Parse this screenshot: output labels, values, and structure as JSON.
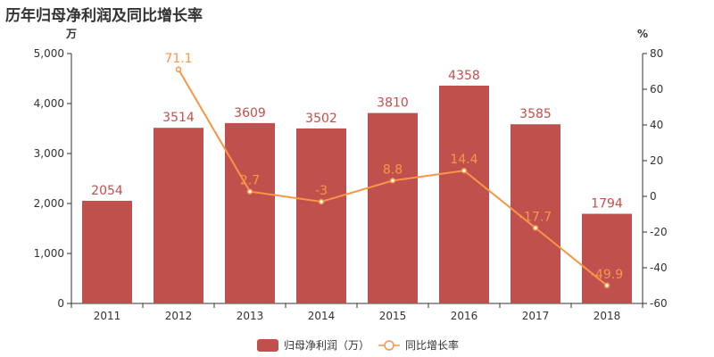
{
  "title": "历年归母净利润及同比增长率",
  "colors": {
    "bar": "#c0504d",
    "line": "#f79646",
    "axis": "#333333"
  },
  "chart_data": {
    "type": "bar",
    "categories": [
      "2011",
      "2012",
      "2013",
      "2014",
      "2015",
      "2016",
      "2017",
      "2018"
    ],
    "series": [
      {
        "name": "归母净利润（万）",
        "kind": "bar",
        "axis": "left",
        "values": [
          2054,
          3514,
          3609,
          3502,
          3810,
          4358,
          3585,
          1794
        ],
        "labels": [
          "2054",
          "3514",
          "3609",
          "3502",
          "3810",
          "4358",
          "3585",
          "1794"
        ]
      },
      {
        "name": "同比增长率",
        "kind": "line",
        "axis": "right",
        "values": [
          null,
          71.1,
          2.7,
          -3,
          8.8,
          14.4,
          -17.7,
          -49.9
        ],
        "labels": [
          "",
          "71.1",
          "2.7",
          "-3",
          "8.8",
          "14.4",
          "-17.7",
          "-49.9"
        ]
      }
    ],
    "y_left": {
      "unit": "万",
      "min": 0,
      "max": 5000,
      "ticks": [
        0,
        1000,
        2000,
        3000,
        4000,
        5000
      ],
      "tick_labels": [
        "0",
        "1,000",
        "2,000",
        "3,000",
        "4,000",
        "5,000"
      ]
    },
    "y_right": {
      "unit": "%",
      "min": -60,
      "max": 80,
      "ticks": [
        -60,
        -40,
        -20,
        0,
        20,
        40,
        60,
        80
      ],
      "tick_labels": [
        "-60",
        "-40",
        "-20",
        "0",
        "20",
        "40",
        "60",
        "80"
      ]
    },
    "legend_position": "bottom-center",
    "grid": false
  }
}
